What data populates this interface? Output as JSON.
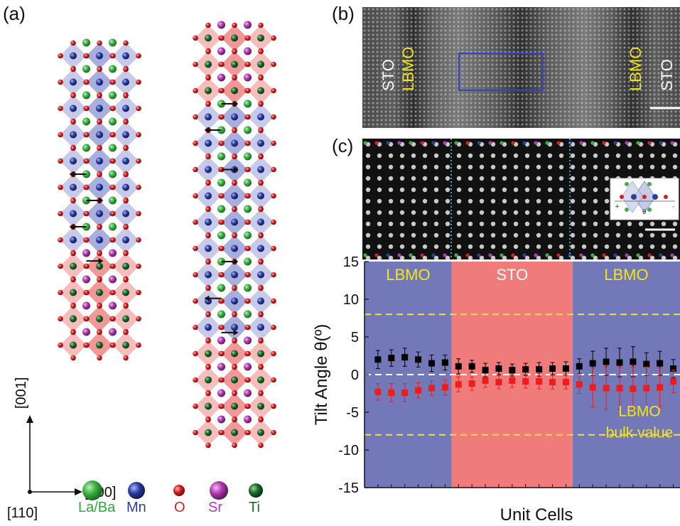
{
  "panel_labels": {
    "a": "(a)",
    "b": "(b)",
    "c": "(c)"
  },
  "axes_labels": {
    "c001": "[001]",
    "c100": "[100]",
    "c110": "[110]"
  },
  "legend": [
    {
      "label": "La/Ba",
      "color": "#3cb043"
    },
    {
      "label": "Mn",
      "color": "#2a3fa0"
    },
    {
      "label": "O",
      "color": "#d42020"
    },
    {
      "label": "Sr",
      "color": "#b03ab0"
    },
    {
      "label": "Ti",
      "color": "#1d6b2c"
    }
  ],
  "panel_b": {
    "labels": [
      "STO",
      "LBMO",
      "LBMO",
      "STO"
    ]
  },
  "chart_data": {
    "type": "scatter",
    "ylabel": "Tilt Angle θ(º)",
    "xlabel": "Unit Cells",
    "ylim": [
      -15,
      15
    ],
    "yticks": [
      15,
      10,
      5,
      0,
      -5,
      -10,
      -15
    ],
    "regions": [
      {
        "label": "LBMO",
        "from": 0,
        "to": 6.5,
        "color": "#7378b8"
      },
      {
        "label": "STO",
        "from": 6.5,
        "to": 15.5,
        "color": "#ef7b7b"
      },
      {
        "label": "LBMO",
        "from": 15.5,
        "to": 23.5,
        "color": "#7378b8"
      }
    ],
    "reference_lines": [
      {
        "y": 8,
        "style": "dashed",
        "color": "#f2e04a"
      },
      {
        "y": -8,
        "style": "dashed",
        "color": "#f2e04a"
      },
      {
        "y": 0,
        "style": "dashed",
        "color": "#ffffff"
      }
    ],
    "annotation": [
      "LBMO",
      "bulk value"
    ],
    "series": [
      {
        "color": "#000000",
        "x": [
          1,
          2,
          3,
          4,
          5,
          6,
          7,
          8,
          9,
          10,
          11,
          12,
          13,
          14,
          15,
          16,
          17,
          18,
          19,
          20,
          21,
          22,
          23
        ],
        "y": [
          2.0,
          2.2,
          2.3,
          2.0,
          1.5,
          1.6,
          1.1,
          1.1,
          0.6,
          0.8,
          0.6,
          0.7,
          0.7,
          0.8,
          0.8,
          1.1,
          1.5,
          1.7,
          1.6,
          1.7,
          1.4,
          1.5,
          0.8
        ],
        "err": [
          1.2,
          1.1,
          1.2,
          1.0,
          1.1,
          1.0,
          1.0,
          0.8,
          0.9,
          0.8,
          0.8,
          0.8,
          0.9,
          0.8,
          0.9,
          1.0,
          1.6,
          1.8,
          1.9,
          2.0,
          1.5,
          1.6,
          1.2
        ]
      },
      {
        "color": "#ee1c1c",
        "x": [
          1,
          2,
          3,
          4,
          5,
          6,
          7,
          8,
          9,
          10,
          11,
          12,
          13,
          14,
          15,
          16,
          17,
          18,
          19,
          20,
          21,
          22,
          23
        ],
        "y": [
          -2.3,
          -2.4,
          -2.4,
          -2.1,
          -1.8,
          -1.7,
          -1.3,
          -1.2,
          -0.8,
          -1.0,
          -0.8,
          -0.9,
          -0.9,
          -1.0,
          -1.0,
          -1.3,
          -1.7,
          -1.8,
          -1.8,
          -1.9,
          -1.8,
          -1.7,
          -0.9
        ],
        "err": [
          1.1,
          1.2,
          1.2,
          1.0,
          1.0,
          1.0,
          1.0,
          0.9,
          0.9,
          0.9,
          0.9,
          0.9,
          1.0,
          0.9,
          0.9,
          1.2,
          2.6,
          2.8,
          2.8,
          2.9,
          2.8,
          2.6,
          1.5
        ]
      }
    ]
  }
}
